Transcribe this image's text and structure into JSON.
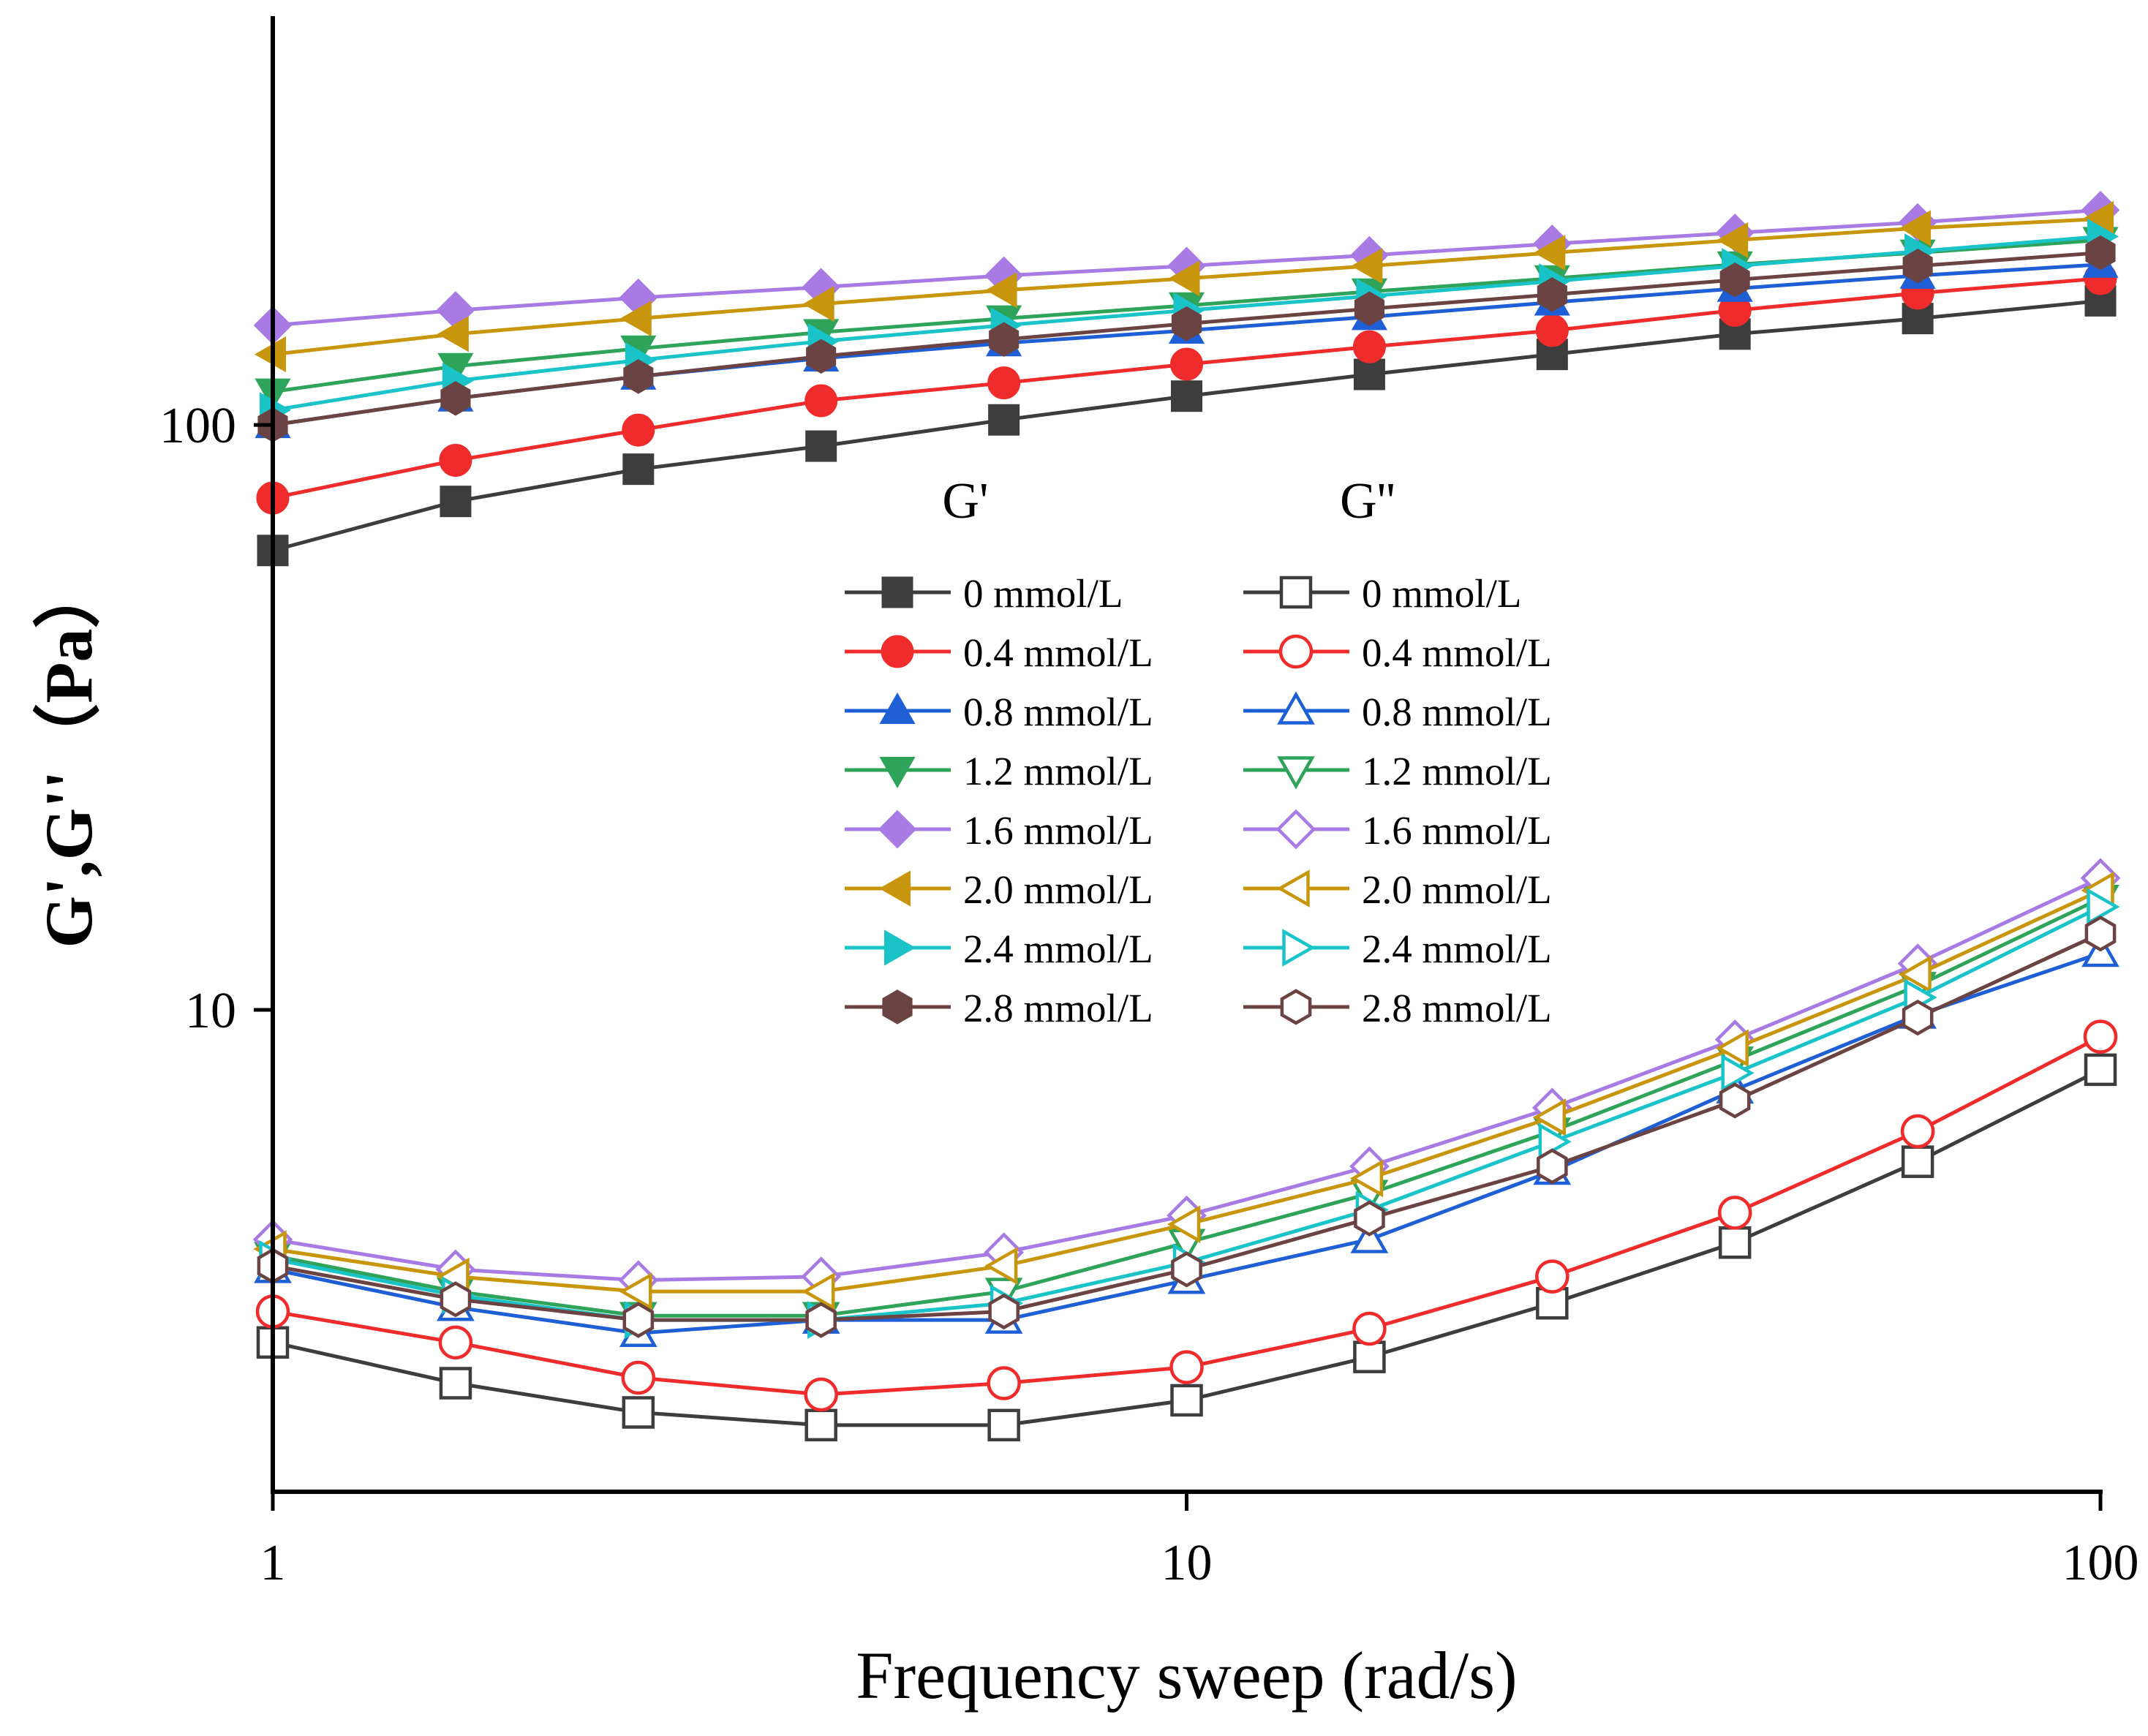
{
  "chart_data": {
    "type": "line",
    "title": "",
    "xlabel": "Frequency sweep (rad/s)",
    "ylabel": "G',G''（Pa）",
    "xscale": "log",
    "yscale": "log",
    "xlim": [
      1,
      100
    ],
    "ylim": [
      1.5,
      500
    ],
    "x_ticks": [
      {
        "value": 1,
        "label": "1"
      },
      {
        "value": 10,
        "label": "10"
      },
      {
        "value": 100,
        "label": "100"
      }
    ],
    "y_ticks": [
      {
        "value": 10,
        "label": "10"
      },
      {
        "value": 100,
        "label": "100"
      }
    ],
    "legend": {
      "placement": "center",
      "group_titles": [
        "G'",
        "G''"
      ]
    },
    "x": [
      1,
      1.585,
      2.512,
      3.981,
      6.31,
      10,
      15.85,
      25.12,
      39.81,
      63.1,
      100
    ],
    "series": [
      {
        "name": "0 mmol/L",
        "group": "G'",
        "color": "#3d3d3d",
        "marker": "square",
        "filled": true,
        "values": [
          61,
          74,
          84,
          92,
          102,
          112,
          122,
          132,
          143,
          152,
          163
        ]
      },
      {
        "name": "0.4 mmol/L",
        "group": "G'",
        "color": "#ef2b2b",
        "marker": "circle",
        "filled": true,
        "values": [
          75,
          87,
          98,
          110,
          118,
          127,
          136,
          145,
          157,
          168,
          178
        ]
      },
      {
        "name": "0.8 mmol/L",
        "group": "G'",
        "color": "#1f5fd6",
        "marker": "triangle-up",
        "filled": true,
        "values": [
          100,
          111,
          121,
          130,
          138,
          145,
          153,
          162,
          171,
          180,
          188
        ]
      },
      {
        "name": "1.2 mmol/L",
        "group": "G'",
        "color": "#2ea35a",
        "marker": "triangle-down",
        "filled": true,
        "values": [
          114,
          126,
          135,
          144,
          152,
          160,
          169,
          178,
          188,
          197,
          207
        ]
      },
      {
        "name": "1.6 mmol/L",
        "group": "G'",
        "color": "#a77be3",
        "marker": "diamond",
        "filled": true,
        "values": [
          148,
          157,
          165,
          172,
          180,
          187,
          195,
          204,
          213,
          222,
          233
        ]
      },
      {
        "name": "2.0 mmol/L",
        "group": "G'",
        "color": "#c8960c",
        "marker": "triangle-left",
        "filled": true,
        "values": [
          132,
          143,
          152,
          161,
          170,
          178,
          187,
          197,
          207,
          217,
          225
        ]
      },
      {
        "name": "2.4 mmol/L",
        "group": "G'",
        "color": "#19c3c8",
        "marker": "triangle-right",
        "filled": true,
        "values": [
          106,
          119,
          129,
          139,
          148,
          157,
          166,
          176,
          187,
          198,
          210
        ]
      },
      {
        "name": "2.8 mmol/L",
        "group": "G'",
        "color": "#6b4343",
        "marker": "hexagon",
        "filled": true,
        "values": [
          100,
          111,
          121,
          131,
          140,
          149,
          158,
          167,
          177,
          187,
          197
        ]
      },
      {
        "name": "0 mmol/L",
        "group": "G''",
        "color": "#3d3d3d",
        "marker": "square",
        "filled": false,
        "values": [
          2.7,
          2.3,
          2.05,
          1.95,
          1.95,
          2.15,
          2.55,
          3.15,
          4.0,
          5.5,
          7.9
        ]
      },
      {
        "name": "0.4 mmol/L",
        "group": "G''",
        "color": "#ef2b2b",
        "marker": "circle",
        "filled": false,
        "values": [
          3.05,
          2.7,
          2.35,
          2.2,
          2.3,
          2.45,
          2.85,
          3.5,
          4.5,
          6.2,
          9.0
        ]
      },
      {
        "name": "0.8 mmol/L",
        "group": "G''",
        "color": "#1f5fd6",
        "marker": "triangle-up",
        "filled": false,
        "values": [
          3.6,
          3.1,
          2.8,
          2.95,
          2.95,
          3.45,
          4.05,
          5.3,
          7.3,
          9.8,
          12.5
        ]
      },
      {
        "name": "1.2 mmol/L",
        "group": "G''",
        "color": "#2ea35a",
        "marker": "triangle-down",
        "filled": false,
        "values": [
          3.8,
          3.3,
          3.0,
          3.0,
          3.3,
          4.0,
          4.85,
          6.2,
          8.2,
          11.0,
          15.5
        ]
      },
      {
        "name": "1.6 mmol/L",
        "group": "G''",
        "color": "#a77be3",
        "marker": "diamond",
        "filled": false,
        "values": [
          4.05,
          3.6,
          3.45,
          3.5,
          3.85,
          4.45,
          5.4,
          6.8,
          8.9,
          12.0,
          16.8
        ]
      },
      {
        "name": "2.0 mmol/L",
        "group": "G''",
        "color": "#c8960c",
        "marker": "triangle-left",
        "filled": false,
        "values": [
          3.9,
          3.5,
          3.3,
          3.3,
          3.65,
          4.3,
          5.15,
          6.55,
          8.6,
          11.5,
          16.0
        ]
      },
      {
        "name": "2.4 mmol/L",
        "group": "G''",
        "color": "#19c3c8",
        "marker": "triangle-right",
        "filled": false,
        "values": [
          3.75,
          3.25,
          2.95,
          2.95,
          3.15,
          3.7,
          4.55,
          5.95,
          7.8,
          10.5,
          15.0
        ]
      },
      {
        "name": "2.8 mmol/L",
        "group": "G''",
        "color": "#6b4343",
        "marker": "hexagon",
        "filled": false,
        "values": [
          3.65,
          3.2,
          2.95,
          2.95,
          3.05,
          3.6,
          4.4,
          5.4,
          7.0,
          9.7,
          13.5
        ]
      }
    ]
  }
}
